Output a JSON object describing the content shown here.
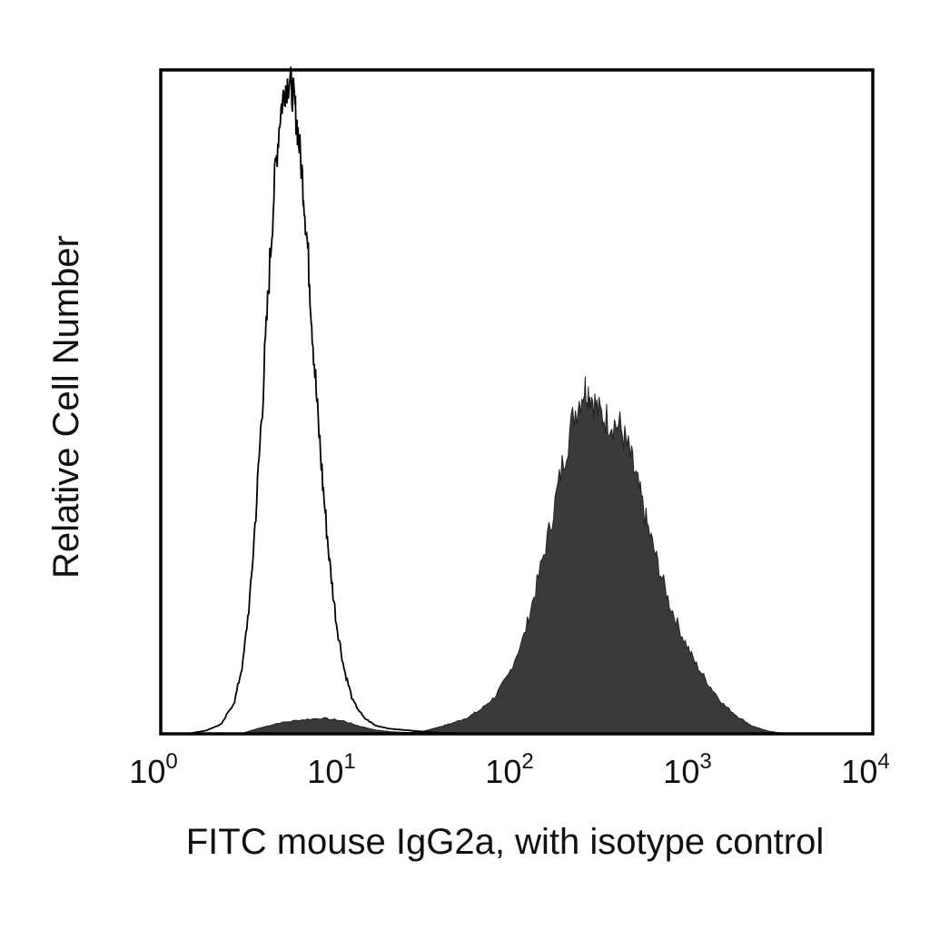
{
  "chart_data": {
    "type": "area",
    "title": "",
    "xlabel": "FITC mouse IgG2a, with isotype control",
    "ylabel": "Relative Cell Number",
    "x_scale": "log",
    "xlim": [
      1,
      10000
    ],
    "ylim": [
      0,
      100
    ],
    "grid": false,
    "x_ticks": [
      {
        "base": "10",
        "exp": "0"
      },
      {
        "base": "10",
        "exp": "1"
      },
      {
        "base": "10",
        "exp": "2"
      },
      {
        "base": "10",
        "exp": "3"
      },
      {
        "base": "10",
        "exp": "4"
      }
    ],
    "series": [
      {
        "style": "outline",
        "color": "#000000",
        "x": [
          1.4,
          1.8,
          2.2,
          2.6,
          2.9,
          3.2,
          3.5,
          3.8,
          4.1,
          4.4,
          4.7,
          5.0,
          5.3,
          5.6,
          5.9,
          6.3,
          6.7,
          7.1,
          7.6,
          8.2,
          8.9,
          9.7,
          10.7,
          12.0,
          13.8,
          16.0,
          19.0,
          23.0,
          28.0,
          35.0,
          45.0
        ],
        "y": [
          0,
          0.5,
          1.5,
          5,
          11,
          22,
          38,
          55,
          72,
          86,
          95,
          99,
          100,
          97,
          92,
          84,
          74,
          62,
          49,
          37,
          26,
          17,
          10,
          5,
          2.5,
          1.3,
          0.8,
          0.6,
          0.4,
          0.2,
          0
        ]
      },
      {
        "style": "filled",
        "color": "#3a3a3a",
        "x": [
          2.8,
          3.5,
          4.5,
          6.0,
          8.0,
          10.5,
          13.0,
          16.0,
          20.0,
          25.0,
          30.0,
          36.0,
          43.0,
          52.0,
          62.0,
          75.0,
          90.0,
          110.0,
          130.0,
          155.0,
          180.0,
          210.0,
          240.0,
          260.0,
          290.0,
          330.0,
          380.0,
          430.0,
          480.0,
          540.0,
          620.0,
          720.0,
          850.0,
          1000.0,
          1200.0,
          1450.0,
          1750.0,
          2100.0,
          2600.0,
          3300.0
        ],
        "y": [
          0,
          0.8,
          1.6,
          2.1,
          2.4,
          2.0,
          1.2,
          0.6,
          0.3,
          0.2,
          0.4,
          1.0,
          1.6,
          2.4,
          3.6,
          5.6,
          9.0,
          15.0,
          23.0,
          32.0,
          41.0,
          49.0,
          53.0,
          52.0,
          49.0,
          48.0,
          47.0,
          43.0,
          38.0,
          32.0,
          26.0,
          20.0,
          15.0,
          11.0,
          7.5,
          4.5,
          2.6,
          1.2,
          0.4,
          0
        ]
      }
    ]
  }
}
